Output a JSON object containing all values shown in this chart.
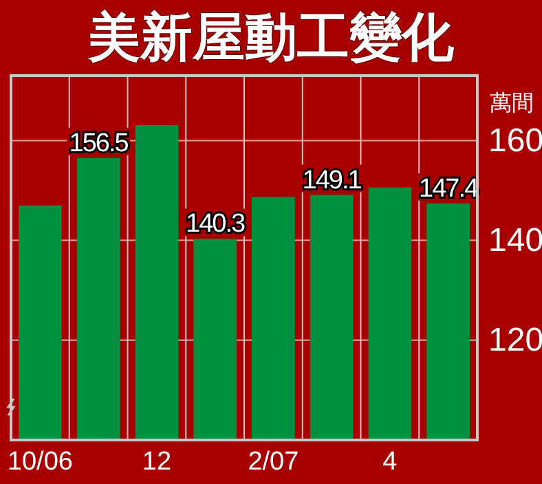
{
  "chart_data": {
    "type": "bar",
    "title": "美新屋動工變化",
    "ylabel": "萬間",
    "categories": [
      "10/06",
      null,
      "12",
      null,
      "2/07",
      null,
      "4",
      null
    ],
    "values": [
      147.0,
      156.5,
      163.1,
      140.3,
      148.7,
      149.1,
      150.6,
      147.4
    ],
    "value_labels": [
      null,
      "156.5",
      null,
      "140.3",
      null,
      "149.1",
      null,
      "147.4"
    ],
    "color": "#009040",
    "ylim": [
      100,
      173
    ],
    "yticks": [
      120,
      140,
      160
    ],
    "grid": true
  }
}
